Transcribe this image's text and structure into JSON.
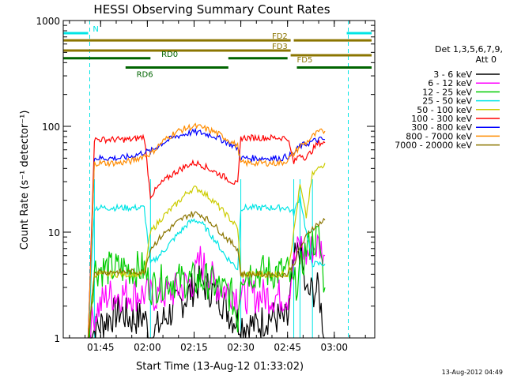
{
  "chart_data": {
    "type": "line",
    "title": "HESSI Observing Summary Count Rates",
    "xlabel": "Start Time (13-Aug-12 01:33:02)",
    "ylabel": "Count Rate (s⁻¹ detector⁻¹)",
    "yscale": "log",
    "ylim": [
      1,
      1000
    ],
    "xlim_minutes_after_0133": [
      0,
      100
    ],
    "x_ticks": [
      {
        "label": "01:45",
        "t": 12
      },
      {
        "label": "02:00",
        "t": 27
      },
      {
        "label": "02:15",
        "t": 42
      },
      {
        "label": "02:30",
        "t": 57
      },
      {
        "label": "02:45",
        "t": 72
      },
      {
        "label": "03:00",
        "t": 87
      }
    ],
    "y_ticks": [
      {
        "label": "1",
        "v": 1
      },
      {
        "label": "10",
        "v": 10
      },
      {
        "label": "100",
        "v": 100
      },
      {
        "label": "1000",
        "v": 1000
      }
    ],
    "legend": {
      "header_1": "Det 1,3,5,6,7,9,",
      "header_2": "Att 0",
      "position": "right"
    },
    "series": [
      {
        "name": "3 - 6 keV",
        "color": "#000000",
        "values": [
          [
            8,
            1.0
          ],
          [
            10,
            1.2
          ],
          [
            14,
            1.5
          ],
          [
            18,
            1.8
          ],
          [
            22,
            1.5
          ],
          [
            26,
            1.6
          ],
          [
            28,
            1.0
          ],
          [
            33,
            1.6
          ],
          [
            38,
            2.2
          ],
          [
            42,
            3.0
          ],
          [
            44,
            3.5
          ],
          [
            46,
            3.0
          ],
          [
            50,
            2.5
          ],
          [
            54,
            1.6
          ],
          [
            57,
            1.4
          ],
          [
            62,
            1.3
          ],
          [
            66,
            1.6
          ],
          [
            70,
            1.5
          ],
          [
            72,
            1.4
          ],
          [
            74,
            5.0
          ],
          [
            76,
            7.0
          ],
          [
            78,
            2.5
          ],
          [
            80,
            2.8
          ],
          [
            82,
            2.8
          ],
          [
            84,
            1.0
          ]
        ]
      },
      {
        "name": "6 - 12 keV",
        "color": "#ff00ff",
        "values": [
          [
            8,
            1.0
          ],
          [
            10,
            1.7
          ],
          [
            14,
            2.5
          ],
          [
            18,
            2.6
          ],
          [
            22,
            2.6
          ],
          [
            26,
            2.6
          ],
          [
            28,
            2.5
          ],
          [
            33,
            2.6
          ],
          [
            38,
            3.0
          ],
          [
            42,
            3.5
          ],
          [
            44,
            5.5
          ],
          [
            46,
            4.2
          ],
          [
            50,
            3.0
          ],
          [
            54,
            2.8
          ],
          [
            57,
            2.5
          ],
          [
            62,
            2.5
          ],
          [
            66,
            2.5
          ],
          [
            70,
            2.5
          ],
          [
            72,
            2.5
          ],
          [
            74,
            5.0
          ],
          [
            76,
            8.0
          ],
          [
            78,
            6.0
          ],
          [
            80,
            7.0
          ],
          [
            82,
            7.5
          ],
          [
            84,
            6.0
          ]
        ]
      },
      {
        "name": "12 - 25 keV",
        "color": "#00cc00",
        "values": [
          [
            8,
            1.0
          ],
          [
            10,
            4.5
          ],
          [
            14,
            4.5
          ],
          [
            18,
            4.5
          ],
          [
            22,
            4.5
          ],
          [
            26,
            4.5
          ],
          [
            28,
            3.0
          ],
          [
            33,
            3.5
          ],
          [
            38,
            3.5
          ],
          [
            42,
            3.5
          ],
          [
            46,
            3.5
          ],
          [
            50,
            3.0
          ],
          [
            54,
            2.5
          ],
          [
            56,
            1.5
          ],
          [
            57,
            4.2
          ],
          [
            62,
            4.2
          ],
          [
            66,
            4.2
          ],
          [
            70,
            4.2
          ],
          [
            72,
            4.2
          ],
          [
            74,
            3.0
          ],
          [
            76,
            4.0
          ],
          [
            78,
            7.0
          ],
          [
            80,
            8.0
          ],
          [
            82,
            9.0
          ],
          [
            84,
            3.0
          ]
        ]
      },
      {
        "name": "25 - 50 keV",
        "color": "#00e5e5",
        "values": [
          [
            8,
            1.0
          ],
          [
            10,
            17
          ],
          [
            14,
            17
          ],
          [
            18,
            17
          ],
          [
            22,
            17
          ],
          [
            26,
            17
          ],
          [
            28,
            5
          ],
          [
            32,
            6.5
          ],
          [
            36,
            9
          ],
          [
            40,
            12
          ],
          [
            42,
            13
          ],
          [
            44,
            12.5
          ],
          [
            48,
            9
          ],
          [
            52,
            6
          ],
          [
            56,
            4.5
          ],
          [
            57,
            17
          ],
          [
            62,
            17
          ],
          [
            66,
            17
          ],
          [
            70,
            17
          ],
          [
            72,
            17
          ],
          [
            74,
            15
          ],
          [
            76,
            22
          ],
          [
            78,
            10
          ],
          [
            80,
            5
          ],
          [
            82,
            5
          ],
          [
            84,
            5
          ]
        ]
      },
      {
        "name": "50 - 100 keV",
        "color": "#cccc00",
        "values": [
          [
            8,
            1.0
          ],
          [
            10,
            4.0
          ],
          [
            14,
            4.0
          ],
          [
            18,
            4.0
          ],
          [
            22,
            4.0
          ],
          [
            26,
            4.0
          ],
          [
            28,
            10
          ],
          [
            32,
            14
          ],
          [
            36,
            18
          ],
          [
            40,
            24
          ],
          [
            42,
            26
          ],
          [
            44,
            25
          ],
          [
            48,
            20
          ],
          [
            52,
            15
          ],
          [
            56,
            11
          ],
          [
            57,
            4.0
          ],
          [
            62,
            4.0
          ],
          [
            66,
            4.0
          ],
          [
            70,
            4.0
          ],
          [
            72,
            4.0
          ],
          [
            74,
            10
          ],
          [
            76,
            28
          ],
          [
            78,
            14
          ],
          [
            80,
            35
          ],
          [
            82,
            40
          ],
          [
            84,
            45
          ]
        ]
      },
      {
        "name": "100 - 300 keV",
        "color": "#ff0000",
        "values": [
          [
            8,
            1.0
          ],
          [
            10,
            75
          ],
          [
            14,
            75
          ],
          [
            18,
            75
          ],
          [
            22,
            75
          ],
          [
            26,
            80
          ],
          [
            28,
            22
          ],
          [
            32,
            30
          ],
          [
            36,
            37
          ],
          [
            40,
            43
          ],
          [
            42,
            45
          ],
          [
            44,
            44
          ],
          [
            48,
            38
          ],
          [
            52,
            33
          ],
          [
            56,
            28
          ],
          [
            57,
            78
          ],
          [
            62,
            78
          ],
          [
            66,
            78
          ],
          [
            70,
            78
          ],
          [
            72,
            78
          ],
          [
            74,
            45
          ],
          [
            76,
            55
          ],
          [
            78,
            50
          ],
          [
            80,
            60
          ],
          [
            82,
            70
          ],
          [
            84,
            70
          ]
        ]
      },
      {
        "name": "300 - 800 keV",
        "color": "#0000ff",
        "values": [
          [
            8,
            1.0
          ],
          [
            10,
            50
          ],
          [
            14,
            50
          ],
          [
            18,
            50
          ],
          [
            22,
            52
          ],
          [
            26,
            57
          ],
          [
            28,
            58
          ],
          [
            32,
            70
          ],
          [
            36,
            80
          ],
          [
            40,
            86
          ],
          [
            42,
            88
          ],
          [
            44,
            87
          ],
          [
            48,
            82
          ],
          [
            52,
            72
          ],
          [
            56,
            62
          ],
          [
            57,
            50
          ],
          [
            62,
            50
          ],
          [
            66,
            50
          ],
          [
            70,
            50
          ],
          [
            72,
            52
          ],
          [
            74,
            55
          ],
          [
            76,
            65
          ],
          [
            78,
            68
          ],
          [
            80,
            72
          ],
          [
            82,
            75
          ],
          [
            84,
            75
          ]
        ]
      },
      {
        "name": "800 - 7000 keV",
        "color": "#ff8c00",
        "values": [
          [
            8,
            1.0
          ],
          [
            10,
            45
          ],
          [
            14,
            45
          ],
          [
            18,
            45
          ],
          [
            22,
            47
          ],
          [
            26,
            53
          ],
          [
            28,
            55
          ],
          [
            32,
            72
          ],
          [
            36,
            88
          ],
          [
            40,
            97
          ],
          [
            42,
            100
          ],
          [
            44,
            98
          ],
          [
            48,
            90
          ],
          [
            52,
            78
          ],
          [
            56,
            65
          ],
          [
            57,
            45
          ],
          [
            62,
            45
          ],
          [
            66,
            45
          ],
          [
            70,
            45
          ],
          [
            72,
            48
          ],
          [
            74,
            55
          ],
          [
            76,
            65
          ],
          [
            78,
            70
          ],
          [
            80,
            80
          ],
          [
            82,
            88
          ],
          [
            84,
            90
          ]
        ]
      },
      {
        "name": "7000 - 20000 keV",
        "color": "#8b7500",
        "values": [
          [
            8,
            1.0
          ],
          [
            10,
            4.2
          ],
          [
            14,
            4.2
          ],
          [
            18,
            4.2
          ],
          [
            22,
            4.2
          ],
          [
            26,
            4.2
          ],
          [
            28,
            7
          ],
          [
            32,
            9.5
          ],
          [
            36,
            12
          ],
          [
            40,
            14.5
          ],
          [
            42,
            15
          ],
          [
            44,
            14.8
          ],
          [
            48,
            12
          ],
          [
            52,
            9
          ],
          [
            56,
            7
          ],
          [
            57,
            4.0
          ],
          [
            62,
            4.0
          ],
          [
            66,
            4.0
          ],
          [
            70,
            4.0
          ],
          [
            72,
            4.0
          ],
          [
            74,
            5
          ],
          [
            76,
            7
          ],
          [
            78,
            9
          ],
          [
            80,
            11
          ],
          [
            82,
            12
          ],
          [
            84,
            13
          ]
        ]
      }
    ],
    "state_bars": [
      {
        "name": "N",
        "color": "#00e5e5",
        "segments": [
          [
            0,
            8
          ],
          [
            91,
            99
          ]
        ],
        "v": 760,
        "label": "N",
        "label_t": 9.5
      },
      {
        "name": "FD2",
        "color": "#8b7500",
        "segments": [
          [
            0,
            73
          ],
          [
            74,
            99
          ]
        ],
        "v": 650,
        "label": "FD2",
        "label_t": 67
      },
      {
        "name": "FD3",
        "color": "#8b7500",
        "segments": [
          [
            0,
            73
          ]
        ],
        "v": 520,
        "label": "FD3",
        "label_t": 67
      },
      {
        "name": "FD5",
        "color": "#8b7500",
        "segments": [
          [
            73,
            99
          ]
        ],
        "v": 470,
        "label": "FD5",
        "label_t": 75
      },
      {
        "name": "RD0",
        "color": "#006400",
        "segments": [
          [
            0,
            28
          ],
          [
            53,
            72
          ]
        ],
        "v": 440,
        "label": "RD0",
        "label_t": 31.5
      },
      {
        "name": "RD6",
        "color": "#006400",
        "segments": [
          [
            20,
            53
          ],
          [
            75,
            99
          ]
        ],
        "v": 360,
        "label": "RD6",
        "label_t": 23.5
      }
    ],
    "night_lines_t": [
      8.5,
      91.5
    ],
    "saa_boundaries_t": [
      10,
      28,
      57,
      74,
      76,
      80
    ]
  },
  "footer": {
    "timestamp": "13-Aug-2012 04:49"
  }
}
